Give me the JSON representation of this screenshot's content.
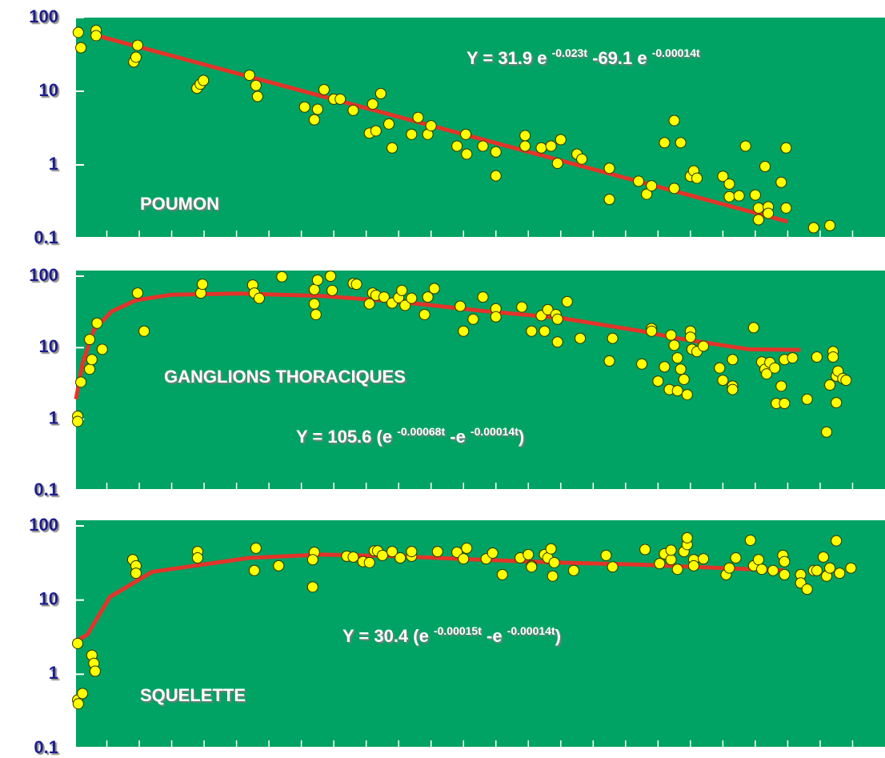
{
  "chart_data": [
    {
      "type": "scatter",
      "label": "POUMON",
      "formula": [
        "Y = 31.9 e ",
        "-0.023t",
        " -69.1 e ",
        "-0.00014t"
      ],
      "log": true,
      "ylim": [
        0.1,
        100
      ],
      "yticks": [
        0.1,
        1,
        10,
        100
      ],
      "xlim": [
        0,
        25
      ],
      "xticks": [
        1,
        2,
        3,
        4,
        5,
        6,
        7,
        8,
        9,
        10,
        11,
        12,
        13,
        14,
        15,
        16,
        17,
        18,
        19,
        20,
        21,
        22,
        23,
        24
      ],
      "background": "#00a363",
      "series": [
        {
          "type": "scatter",
          "color": "#ffff00",
          "x": [
            0.12,
            0.2,
            0.67,
            0.67,
            1.83,
            1.9,
            1.95,
            3.78,
            3.88,
            3.98,
            5.4,
            5.6,
            5.65,
            7.1,
            7.4,
            7.5,
            7.7,
            8.0,
            8.2,
            8.6,
            9.1,
            9.3,
            9.2,
            9.45,
            9.7,
            9.8,
            10.6,
            10.4,
            10.9,
            11.0,
            11.8,
            12.07,
            12.1,
            12.6,
            13.0,
            13.0,
            13.9,
            13.9,
            14.4,
            14.7,
            15.0,
            14.9,
            15.5,
            15.65,
            16.5,
            16.5,
            17.4,
            17.65,
            17.8,
            18.2,
            18.5,
            18.5,
            18.7,
            19.0,
            19.1,
            19.2,
            20.0,
            20.2,
            20.2,
            20.5,
            20.7,
            21.0,
            21.1,
            21.1,
            21.3,
            21.4,
            21.4,
            21.8,
            21.95,
            21.95,
            22.8,
            23.3
          ],
          "values": [
            63,
            39,
            67,
            57,
            25,
            29,
            42,
            11,
            12.5,
            14,
            16.5,
            12,
            8.5,
            6.1,
            4.1,
            5.7,
            10.5,
            7.8,
            7.8,
            5.5,
            2.7,
            2.9,
            6.7,
            9.3,
            3.6,
            1.7,
            4.4,
            2.6,
            2.6,
            3.4,
            1.8,
            2.6,
            1.4,
            1.8,
            1.5,
            0.71,
            2.5,
            1.8,
            1.7,
            1.8,
            2.2,
            1.05,
            1.4,
            1.2,
            0.9,
            0.34,
            0.6,
            0.4,
            0.52,
            2.0,
            4.0,
            0.48,
            2.0,
            0.7,
            0.83,
            0.66,
            0.7,
            0.55,
            0.37,
            0.38,
            1.8,
            0.39,
            0.26,
            0.18,
            0.95,
            0.27,
            0.22,
            0.58,
            1.7,
            0.26,
            0.14,
            0.15
          ]
        },
        {
          "type": "line",
          "color": "#e3342a",
          "x": [
            0.7,
            22.0
          ],
          "values": [
            57,
            0.17
          ]
        }
      ]
    },
    {
      "type": "scatter",
      "label": "GANGLIONS THORACIQUES",
      "formula": [
        "Y = 105.6 (e ",
        "-0.00068t",
        " -e ",
        "-0.00014t",
        ")"
      ],
      "log": true,
      "ylim": [
        0.1,
        100
      ],
      "yticks": [
        0.1,
        1,
        10,
        100
      ],
      "xlim": [
        0,
        25
      ],
      "xticks": [
        1,
        2,
        3,
        4,
        5,
        6,
        7,
        8,
        9,
        10,
        11,
        12,
        13,
        14,
        15,
        16,
        17,
        18,
        19,
        20,
        21,
        22,
        23,
        24
      ],
      "background": "#00a363",
      "series": [
        {
          "type": "scatter",
          "color": "#ffff00",
          "x": [
            0.1,
            0.1,
            0.2,
            0.47,
            0.54,
            0.47,
            0.7,
            0.86,
            1.95,
            2.15,
            3.9,
            3.95,
            5.5,
            5.55,
            5.7,
            6.4,
            7.4,
            7.5,
            7.4,
            7.45,
            7.9,
            7.95,
            8.6,
            8.7,
            9.1,
            9.2,
            9.3,
            9.55,
            9.8,
            10.0,
            10.1,
            10.2,
            10.4,
            10.8,
            10.9,
            11.1,
            11.9,
            12.0,
            12.3,
            12.6,
            13.0,
            13.0,
            13.8,
            14.1,
            14.4,
            14.5,
            14.6,
            14.85,
            14.9,
            14.9,
            15.2,
            15.6,
            16.6,
            16.5,
            17.5,
            17.8,
            17.8,
            18.0,
            18.2,
            18.35,
            18.4,
            18.5,
            18.6,
            18.6,
            18.7,
            18.8,
            18.9,
            19.0,
            19.0,
            19.05,
            19.2,
            19.4,
            19.9,
            20.0,
            20.3,
            20.3,
            20.3,
            20.95,
            21.2,
            21.3,
            21.35,
            21.45,
            21.6,
            21.65,
            21.8,
            21.9,
            21.9,
            22.15,
            22.6,
            22.9,
            23.2,
            23.3,
            23.4,
            23.4,
            23.5,
            23.5,
            23.55,
            23.7,
            23.8
          ],
          "values": [
            1.1,
            0.93,
            3.3,
            5.0,
            6.8,
            13,
            22,
            9.5,
            58,
            17,
            58,
            77,
            75,
            58,
            49,
            98,
            65,
            88,
            41,
            29,
            100,
            63,
            79,
            77,
            41,
            58,
            54,
            51,
            42,
            50,
            63,
            39,
            49,
            29,
            51,
            67,
            38,
            17,
            25,
            51,
            35,
            27,
            37,
            17,
            28,
            17,
            34,
            29,
            25,
            12,
            44,
            13.5,
            13.5,
            6.5,
            5.9,
            18.5,
            17,
            3.4,
            5.4,
            2.6,
            15,
            10.8,
            2.5,
            7.2,
            5,
            3.6,
            2.2,
            17,
            14,
            9.5,
            8.8,
            10.5,
            5.2,
            3.5,
            2.9,
            2.6,
            6.8,
            19,
            6.3,
            5,
            4.3,
            6.2,
            5.2,
            1.66,
            2.9,
            1.66,
            6.8,
            7.2,
            1.9,
            7.4,
            0.66,
            3.0,
            8.8,
            7.4,
            4.0,
            1.7,
            4.7,
            3.7,
            3.5
          ]
        },
        {
          "type": "line",
          "color": "#e3342a",
          "x": [
            0.05,
            0.25,
            0.6,
            1.15,
            1.9,
            3.0,
            5.1,
            7.6,
            10.0,
            12.5,
            15.0,
            17.5,
            18.7,
            20.8,
            22.4
          ],
          "values": [
            1.9,
            5.9,
            17.6,
            32,
            46,
            55,
            57,
            53,
            44,
            33,
            26,
            17,
            13.3,
            9.5,
            9.3
          ]
        }
      ]
    },
    {
      "type": "scatter",
      "label": "SQUELETTE",
      "formula": [
        "Y = 30.4 (e ",
        "-0.00015t",
        " -e ",
        "-0.00014t",
        ")"
      ],
      "log": true,
      "ylim": [
        0.1,
        100
      ],
      "yticks": [
        0.1,
        1,
        10,
        100
      ],
      "xlim": [
        0,
        25
      ],
      "xticks": [
        1,
        2,
        3,
        4,
        5,
        6,
        7,
        8,
        9,
        10,
        11,
        12,
        13,
        14,
        15,
        16,
        17,
        18,
        19,
        20,
        21,
        22,
        23,
        24
      ],
      "background": "#00a363",
      "series": [
        {
          "type": "scatter",
          "color": "#ffff00",
          "x": [
            0.1,
            0.1,
            0.12,
            0.25,
            0.54,
            0.6,
            0.64,
            1.8,
            1.9,
            1.9,
            3.8,
            3.8,
            5.6,
            5.55,
            6.3,
            7.35,
            7.4,
            7.35,
            8.4,
            8.6,
            8.9,
            9.1,
            9.25,
            9.35,
            9.5,
            9.8,
            10.05,
            10.4,
            10.4,
            11.2,
            11.8,
            12.0,
            12.1,
            12.7,
            12.9,
            13.2,
            13.75,
            14.0,
            14.1,
            14.1,
            14.5,
            14.6,
            14.7,
            14.75,
            14.8,
            15.4,
            16.4,
            16.6,
            17.6,
            18.05,
            18.2,
            18.4,
            18.4,
            18.6,
            18.8,
            18.9,
            18.9,
            19.1,
            19.1,
            19.4,
            20.1,
            20.2,
            20.4,
            20.85,
            20.95,
            21.1,
            21.2,
            21.55,
            21.85,
            21.9,
            21.9,
            22.4,
            22.4,
            22.6,
            22.8,
            22.9,
            23.1,
            23.2,
            23.3,
            23.5,
            23.6,
            23.95
          ],
          "values": [
            2.6,
            0.45,
            0.4,
            0.55,
            1.8,
            1.4,
            1.1,
            35,
            29,
            23,
            45,
            37,
            50,
            25,
            29,
            15,
            44,
            35,
            39,
            38,
            33,
            32,
            46,
            46,
            40,
            45,
            37,
            39,
            45,
            45,
            44,
            36,
            50,
            36,
            43,
            22,
            37,
            41,
            29,
            28,
            41,
            37,
            49,
            21,
            32,
            25,
            40,
            28,
            48,
            31,
            42,
            35,
            47,
            26,
            45,
            56,
            69,
            35,
            29,
            36,
            22,
            27,
            37,
            64,
            29,
            35,
            26,
            25,
            40,
            33,
            22,
            22,
            17,
            14,
            25,
            25,
            38,
            21,
            27,
            63,
            23,
            27
          ]
        },
        {
          "type": "line",
          "color": "#e3342a",
          "x": [
            0.05,
            0.4,
            1.1,
            2.4,
            5.4,
            7.6,
            10.0,
            12.5,
            15.0,
            17.5,
            20.0,
            21.9
          ],
          "values": [
            2.8,
            3.4,
            11,
            24,
            37,
            41,
            39,
            35,
            32,
            30,
            27,
            25
          ]
        }
      ]
    }
  ]
}
